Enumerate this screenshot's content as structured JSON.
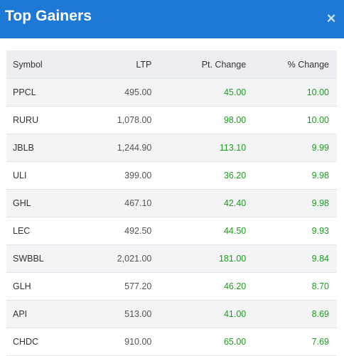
{
  "header": {
    "title": "Top Gainers",
    "close_icon": "close-icon",
    "background_color": "#1e79d6"
  },
  "table": {
    "columns": [
      "Symbol",
      "LTP",
      "Pt. Change",
      "% Change"
    ],
    "positive_color": "#1a9e1a",
    "rows": [
      {
        "symbol": "PPCL",
        "ltp": "495.00",
        "pt_change": "45.00",
        "pct_change": "10.00"
      },
      {
        "symbol": "RURU",
        "ltp": "1,078.00",
        "pt_change": "98.00",
        "pct_change": "10.00"
      },
      {
        "symbol": "JBLB",
        "ltp": "1,244.90",
        "pt_change": "113.10",
        "pct_change": "9.99"
      },
      {
        "symbol": "ULI",
        "ltp": "399.00",
        "pt_change": "36.20",
        "pct_change": "9.98"
      },
      {
        "symbol": "GHL",
        "ltp": "467.10",
        "pt_change": "42.40",
        "pct_change": "9.98"
      },
      {
        "symbol": "LEC",
        "ltp": "492.50",
        "pt_change": "44.50",
        "pct_change": "9.93"
      },
      {
        "symbol": "SWBBL",
        "ltp": "2,021.00",
        "pt_change": "181.00",
        "pct_change": "9.84"
      },
      {
        "symbol": "GLH",
        "ltp": "577.20",
        "pt_change": "46.20",
        "pct_change": "8.70"
      },
      {
        "symbol": "API",
        "ltp": "513.00",
        "pt_change": "41.00",
        "pct_change": "8.69"
      },
      {
        "symbol": "CHDC",
        "ltp": "910.00",
        "pt_change": "65.00",
        "pct_change": "7.69"
      }
    ]
  }
}
